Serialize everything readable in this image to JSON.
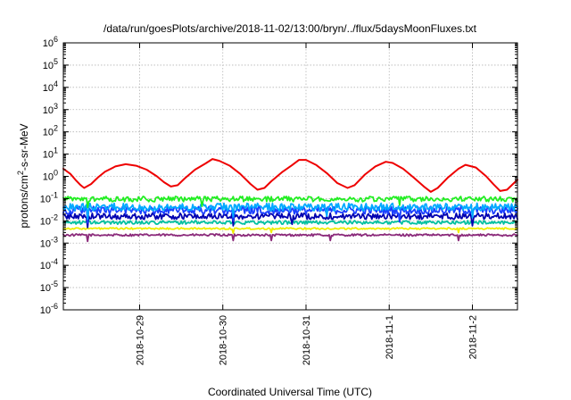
{
  "chart_data": {
    "type": "line",
    "title": "/data/run/goesPlots/archive/2018-11-02/13:00/bryn/../flux/5daysMoonFluxes.txt",
    "xlabel": "Coordinated Universal Time (UTC)",
    "ylabel": "protons/cm²-s-sr-MeV",
    "xscale": "time",
    "yscale": "log",
    "grid": true,
    "legend": "none",
    "xlim": [
      "2018-10-28T02:00",
      "2018-11-02T13:00"
    ],
    "ylim": [
      1e-06,
      1000000.0
    ],
    "x_ticks": [
      "2018-10-29",
      "2018-10-30",
      "2018-10-31",
      "2018-11-1",
      "2018-11-2"
    ],
    "x_tick_values": [
      "2018-10-29T00:00",
      "2018-10-30T00:00",
      "2018-10-31T00:00",
      "2018-11-01T00:00",
      "2018-11-02T00:00"
    ],
    "y_ticks": [
      {
        "base": "10",
        "exp": "-6"
      },
      {
        "base": "10",
        "exp": "-5"
      },
      {
        "base": "10",
        "exp": "-4"
      },
      {
        "base": "10",
        "exp": "-3"
      },
      {
        "base": "10",
        "exp": "-2"
      },
      {
        "base": "10",
        "exp": "-1"
      },
      {
        "base": "10",
        "exp": "0"
      },
      {
        "base": "10",
        "exp": "1"
      },
      {
        "base": "10",
        "exp": "2"
      },
      {
        "base": "10",
        "exp": "3"
      },
      {
        "base": "10",
        "exp": "4"
      },
      {
        "base": "10",
        "exp": "5"
      },
      {
        "base": "10",
        "exp": "6"
      }
    ],
    "series": [
      {
        "color": "#ee0000",
        "points": [
          [
            "2018-10-28T02:00",
            2.2
          ],
          [
            "2018-10-28T04:00",
            1.3
          ],
          [
            "2018-10-28T05:30",
            0.7
          ],
          [
            "2018-10-28T07:00",
            0.4
          ],
          [
            "2018-10-28T08:00",
            0.3
          ],
          [
            "2018-10-28T10:00",
            0.45
          ],
          [
            "2018-10-28T12:00",
            0.9
          ],
          [
            "2018-10-28T14:00",
            1.6
          ],
          [
            "2018-10-28T17:00",
            2.8
          ],
          [
            "2018-10-28T20:00",
            3.5
          ],
          [
            "2018-10-28T23:00",
            3.0
          ],
          [
            "2018-10-29T02:00",
            2.0
          ],
          [
            "2018-10-29T05:00",
            1.0
          ],
          [
            "2018-10-29T07:00",
            0.55
          ],
          [
            "2018-10-29T09:00",
            0.35
          ],
          [
            "2018-10-29T11:00",
            0.4
          ],
          [
            "2018-10-29T13:00",
            0.8
          ],
          [
            "2018-10-29T16:00",
            2.0
          ],
          [
            "2018-10-29T19:00",
            3.8
          ],
          [
            "2018-10-29T21:00",
            6.0
          ],
          [
            "2018-10-29T23:00",
            5.0
          ],
          [
            "2018-10-30T02:00",
            3.0
          ],
          [
            "2018-10-30T05:00",
            1.3
          ],
          [
            "2018-10-30T08:00",
            0.45
          ],
          [
            "2018-10-30T10:00",
            0.25
          ],
          [
            "2018-10-30T12:00",
            0.3
          ],
          [
            "2018-10-30T14:00",
            0.6
          ],
          [
            "2018-10-30T17:00",
            1.5
          ],
          [
            "2018-10-30T20:00",
            3.2
          ],
          [
            "2018-10-30T22:00",
            5.5
          ],
          [
            "2018-10-31T00:00",
            5.5
          ],
          [
            "2018-10-31T03:00",
            3.2
          ],
          [
            "2018-10-31T06:00",
            1.4
          ],
          [
            "2018-10-31T09:00",
            0.5
          ],
          [
            "2018-10-31T12:00",
            0.3
          ],
          [
            "2018-10-31T14:00",
            0.4
          ],
          [
            "2018-10-31T17:00",
            1.2
          ],
          [
            "2018-10-31T20:00",
            2.8
          ],
          [
            "2018-10-31T23:00",
            4.5
          ],
          [
            "2018-11-01T01:00",
            4.0
          ],
          [
            "2018-11-01T04:00",
            2.2
          ],
          [
            "2018-11-01T07:00",
            0.9
          ],
          [
            "2018-11-01T10:00",
            0.35
          ],
          [
            "2018-11-01T12:00",
            0.2
          ],
          [
            "2018-11-01T14:00",
            0.3
          ],
          [
            "2018-11-01T17:00",
            0.9
          ],
          [
            "2018-11-01T20:00",
            2.2
          ],
          [
            "2018-11-01T22:00",
            3.3
          ],
          [
            "2018-11-02T01:00",
            2.5
          ],
          [
            "2018-11-02T04:00",
            1.0
          ],
          [
            "2018-11-02T06:00",
            0.45
          ],
          [
            "2018-11-02T08:00",
            0.22
          ],
          [
            "2018-11-02T10:00",
            0.25
          ],
          [
            "2018-11-02T12:00",
            0.5
          ],
          [
            "2018-11-02T13:00",
            0.7
          ]
        ]
      },
      {
        "color": "#22ee22",
        "baseline": 0.095,
        "amplitude": 0.12,
        "dips": [
          [
            "2018-10-28T09:00",
            0.04
          ],
          [
            "2018-10-29T18:00",
            0.045
          ],
          [
            "2018-11-01T03:00",
            0.05
          ]
        ]
      },
      {
        "color": "#00aaff",
        "baseline": 0.042,
        "amplitude": 0.17,
        "dips": [
          [
            "2018-10-28T09:00",
            0.012
          ],
          [
            "2018-10-30T03:00",
            0.015
          ],
          [
            "2018-10-31T06:00",
            0.016
          ],
          [
            "2018-11-02T00:00",
            0.014
          ]
        ]
      },
      {
        "color": "#1a3fff",
        "baseline": 0.03,
        "amplitude": 0.17,
        "dips": [
          [
            "2018-10-28T09:00",
            0.008
          ],
          [
            "2018-10-30T03:00",
            0.01
          ],
          [
            "2018-11-01T03:00",
            0.009
          ]
        ]
      },
      {
        "color": "#0000b0",
        "baseline": 0.016,
        "amplitude": 0.14,
        "dips": [
          [
            "2018-10-28T09:00",
            0.005
          ],
          [
            "2018-10-30T03:00",
            0.006
          ],
          [
            "2018-10-30T20:00",
            0.007
          ],
          [
            "2018-11-02T00:00",
            0.006
          ]
        ]
      },
      {
        "color": "#00c0a0",
        "baseline": 0.0085,
        "amplitude": 0.08,
        "dips": []
      },
      {
        "color": "#eeee00",
        "baseline": 0.0045,
        "amplitude": 0.04,
        "dips": [
          [
            "2018-10-30T03:00",
            0.0028
          ],
          [
            "2018-10-30T14:00",
            0.003
          ],
          [
            "2018-11-01T20:00",
            0.003
          ]
        ]
      },
      {
        "color": "#8b2a7a",
        "baseline": 0.0023,
        "amplitude": 0.05,
        "dips": [
          [
            "2018-10-28T09:00",
            0.0012
          ],
          [
            "2018-10-30T03:00",
            0.0013
          ],
          [
            "2018-10-30T14:00",
            0.0013
          ],
          [
            "2018-10-31T07:00",
            0.0013
          ],
          [
            "2018-11-01T20:00",
            0.0013
          ]
        ]
      }
    ]
  }
}
